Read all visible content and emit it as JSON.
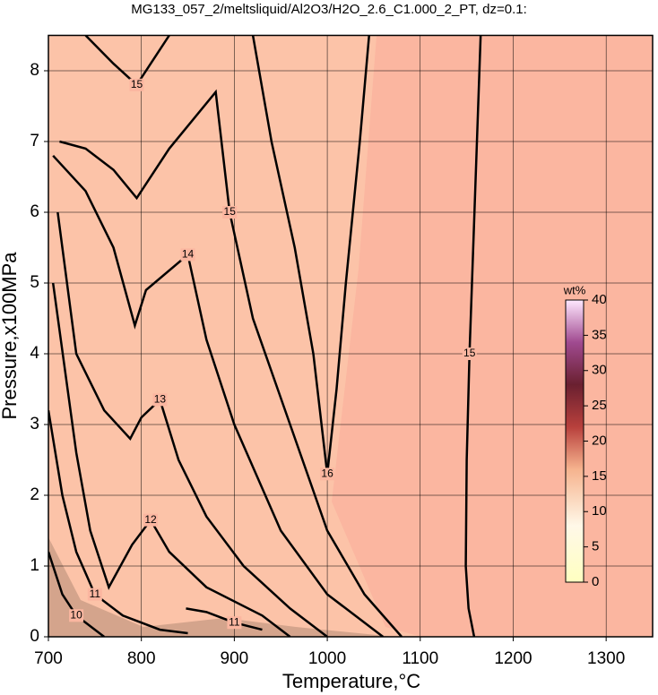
{
  "chart_data": {
    "type": "contour",
    "title": "MG133_057_2/meltsliquid/Al2O3/H2O_2.6_C1.000_2_PT, dz=0.1:",
    "x_label": "Temperature,°C",
    "y_label": "Pressure,x100MPa",
    "xlim": [
      700,
      1350
    ],
    "ylim": [
      0,
      8.5
    ],
    "xticks": [
      700,
      800,
      900,
      1000,
      1100,
      1200,
      1300
    ],
    "yticks": [
      0,
      1,
      2,
      3,
      4,
      5,
      6,
      7,
      8
    ],
    "grid": true,
    "background_color": "#fbb6a0",
    "line_color": "#000000",
    "contours": [
      {
        "level": 15,
        "x": [
          1158,
          1152,
          1149,
          1150,
          1153,
          1157,
          1161,
          1165
        ],
        "y": [
          0,
          0.4,
          1.0,
          2.5,
          4.0,
          5.5,
          7.0,
          8.5
        ]
      },
      {
        "level": 16,
        "x": [
          920,
          940,
          965,
          985,
          1000,
          1010,
          1020,
          1035,
          1045
        ],
        "y": [
          8.5,
          7.0,
          5.5,
          4.0,
          2.3,
          3.5,
          5.0,
          7.0,
          8.5
        ]
      },
      {
        "level": 15,
        "x": [
          712,
          740,
          770,
          795,
          830,
          880,
          895,
          920,
          960,
          1000,
          1040,
          1080
        ],
        "y": [
          7.0,
          6.9,
          6.6,
          6.2,
          6.9,
          7.7,
          6.0,
          4.5,
          3.0,
          1.5,
          0.6,
          0
        ]
      },
      {
        "level": 15,
        "x": [
          740,
          770,
          795,
          815,
          830
        ],
        "y": [
          8.5,
          8.1,
          7.8,
          8.2,
          8.5
        ]
      },
      {
        "level": 14,
        "x": [
          705,
          740,
          770,
          793,
          805,
          850,
          870,
          900,
          950,
          1000,
          1060
        ],
        "y": [
          6.8,
          6.3,
          5.5,
          4.4,
          4.9,
          5.4,
          4.2,
          3.0,
          1.5,
          0.6,
          0
        ]
      },
      {
        "level": 13,
        "x": [
          710,
          730,
          760,
          788,
          800,
          820,
          840,
          870,
          910,
          960,
          1000
        ],
        "y": [
          6.0,
          4.0,
          3.2,
          2.8,
          3.1,
          3.35,
          2.5,
          1.7,
          1.0,
          0.4,
          0
        ]
      },
      {
        "level": 12,
        "x": [
          705,
          730,
          745,
          765,
          790,
          810,
          830,
          870,
          930,
          960
        ],
        "y": [
          5.0,
          2.6,
          1.5,
          0.7,
          1.3,
          1.65,
          1.2,
          0.7,
          0.3,
          0
        ]
      },
      {
        "level": 11,
        "x": [
          700,
          715,
          730,
          750,
          780,
          820,
          850
        ],
        "y": [
          3.2,
          2.0,
          1.2,
          0.6,
          0.3,
          0.1,
          0.05
        ]
      },
      {
        "level": 11,
        "x": [
          848,
          870,
          900,
          930
        ],
        "y": [
          0.4,
          0.35,
          0.2,
          0.1
        ]
      },
      {
        "level": 10,
        "x": [
          700,
          715,
          730,
          760
        ],
        "y": [
          1.2,
          0.6,
          0.3,
          0
        ]
      }
    ],
    "colorbar": {
      "label": "wt%",
      "lim": [
        0,
        40
      ],
      "ticks": [
        0,
        5,
        10,
        15,
        20,
        25,
        30,
        35,
        40
      ]
    }
  }
}
